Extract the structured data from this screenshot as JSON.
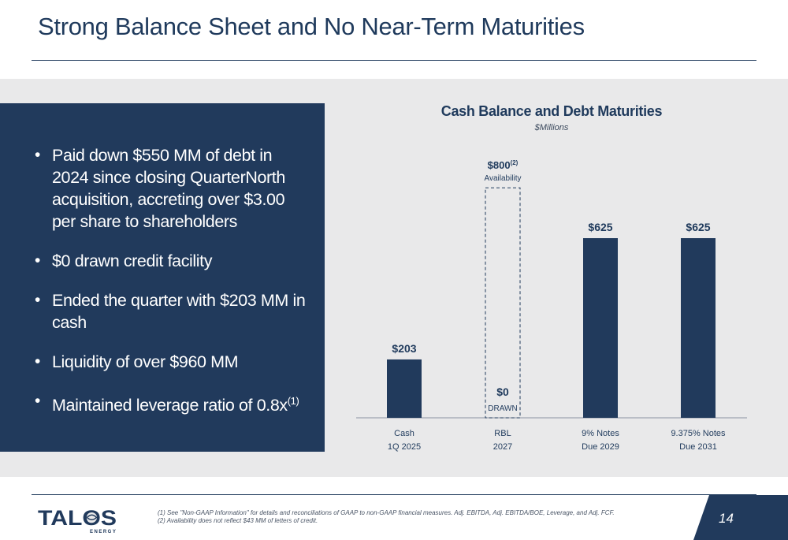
{
  "header": {
    "title": "Strong Balance Sheet and No Near-Term Maturities"
  },
  "bullets": [
    {
      "text": "Paid down $550 MM of debt in 2024 since closing QuarterNorth acquisition, accreting over $3.00 per share to shareholders",
      "sup": ""
    },
    {
      "text": "$0 drawn credit facility",
      "sup": ""
    },
    {
      "text": "Ended the quarter with $203 MM in cash",
      "sup": ""
    },
    {
      "text": "Liquidity of over $960 MM",
      "sup": ""
    },
    {
      "text": "Maintained leverage ratio of 0.8x",
      "sup": "(1)"
    }
  ],
  "chart_data": {
    "type": "bar",
    "title": "Cash Balance and Debt Maturities",
    "subtitle": "$Millions",
    "categories": [
      [
        "Cash",
        "1Q 2025"
      ],
      [
        "RBL",
        "2027"
      ],
      [
        "9% Notes",
        "Due 2029"
      ],
      [
        "9.375% Notes",
        "Due 2031"
      ]
    ],
    "values": [
      203,
      0,
      625,
      625
    ],
    "value_labels": [
      "$203",
      "$0",
      "$625",
      "$625"
    ],
    "value_sublabels": [
      "",
      "DRAWN",
      "",
      ""
    ],
    "availability": {
      "category_index": 1,
      "value": 800,
      "label": "$800",
      "sup": "(2)",
      "sublabel": "Availability",
      "style": "dashed-outline"
    },
    "ylim": [
      0,
      850
    ],
    "bar_color": "#213a5c",
    "grid": false
  },
  "footer": {
    "logo_text": "TALOS",
    "logo_subtext": "ENERGY",
    "footnotes": [
      "(1)  See \"Non-GAAP Information\" for details and reconciliations of GAAP to non-GAAP financial measures. Adj. EBITDA, Adj. EBITDA/BOE, Leverage, and Adj. FCF.",
      "(2)  Availability does not reflect $43 MM of letters of credit."
    ],
    "page_number": "14"
  },
  "colors": {
    "navy": "#213a5c",
    "band": "#e9e9ea",
    "white": "#ffffff"
  }
}
